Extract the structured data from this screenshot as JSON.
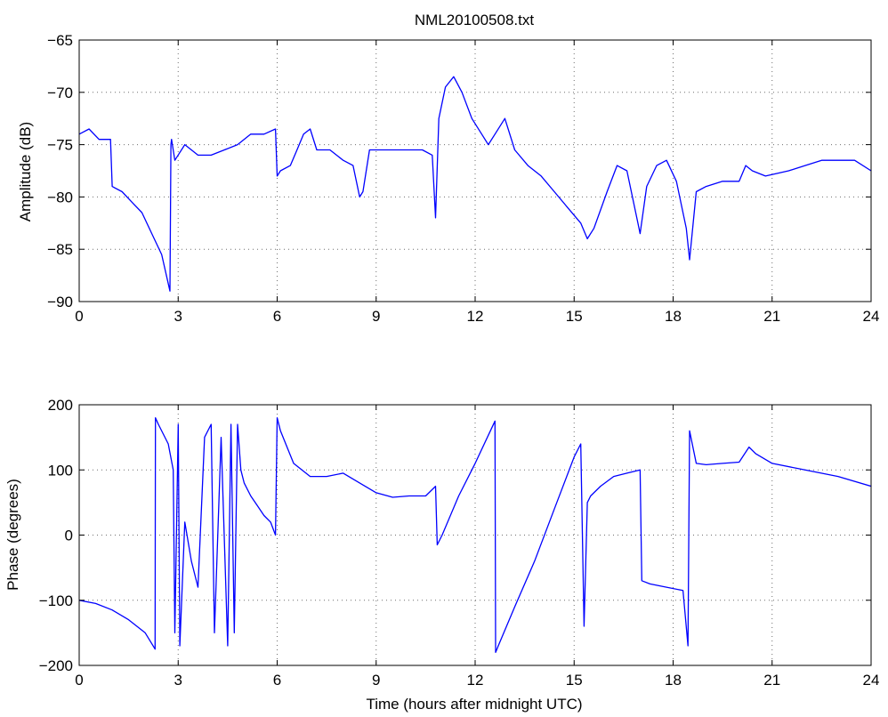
{
  "figure": {
    "background": "#ffffff",
    "line_color": "#0000ff",
    "axis_color": "#000000",
    "grid_color": "#6e6e6e"
  },
  "chart_data": [
    {
      "type": "line",
      "title": "NML20100508.txt",
      "xlabel": "",
      "ylabel": "Amplitude (dB)",
      "xlim": [
        0,
        24
      ],
      "ylim": [
        -90,
        -65
      ],
      "xticks": [
        0,
        3,
        6,
        9,
        12,
        15,
        18,
        21,
        24
      ],
      "yticks": [
        -90,
        -85,
        -80,
        -75,
        -70,
        -65
      ],
      "xtick_labels": [
        "0",
        "3",
        "6",
        "9",
        "12",
        "15",
        "18",
        "21",
        "24"
      ],
      "ytick_labels": [
        "−90",
        "−85",
        "−80",
        "−75",
        "−70",
        "−65"
      ],
      "grid": true,
      "series": [
        {
          "x": [
            0,
            0.3,
            0.6,
            0.95,
            1.0,
            1.3,
            1.6,
            1.9,
            2.2,
            2.5,
            2.75,
            2.78,
            2.8,
            2.9,
            3.2,
            3.6,
            4.0,
            4.4,
            4.8,
            5.2,
            5.6,
            5.95,
            6.0,
            6.1,
            6.4,
            6.6,
            6.8,
            7.0,
            7.2,
            7.6,
            8.0,
            8.3,
            8.5,
            8.6,
            8.8,
            9.2,
            9.6,
            10.0,
            10.4,
            10.7,
            10.8,
            10.9,
            11.1,
            11.35,
            11.6,
            11.9,
            12.2,
            12.4,
            12.6,
            12.9,
            13.2,
            13.6,
            14.0,
            14.4,
            14.8,
            15.2,
            15.4,
            15.6,
            16.0,
            16.3,
            16.6,
            16.9,
            17.0,
            17.2,
            17.5,
            17.8,
            18.1,
            18.4,
            18.5,
            18.7,
            19.0,
            19.5,
            20.0,
            20.2,
            20.4,
            20.8,
            21.5,
            22.0,
            22.5,
            23.0,
            23.5,
            24.0
          ],
          "values": [
            -74,
            -73.5,
            -74.5,
            -74.5,
            -79,
            -79.5,
            -80.5,
            -81.5,
            -83.5,
            -85.5,
            -89,
            -75,
            -74.5,
            -76.5,
            -75,
            -76,
            -76,
            -75.5,
            -75,
            -74,
            -74,
            -73.5,
            -78,
            -77.5,
            -77,
            -75.5,
            -74,
            -73.5,
            -75.5,
            -75.5,
            -76.5,
            -77,
            -80,
            -79.5,
            -75.5,
            -75.5,
            -75.5,
            -75.5,
            -75.5,
            -76,
            -82,
            -72.5,
            -69.5,
            -68.5,
            -70,
            -72.5,
            -74,
            -75,
            -74,
            -72.5,
            -75.5,
            -77,
            -78,
            -79.5,
            -81,
            -82.5,
            -84,
            -83,
            -79.5,
            -77,
            -77.5,
            -82,
            -83.5,
            -79,
            -77,
            -76.5,
            -78.5,
            -83,
            -86,
            -79.5,
            -79,
            -78.5,
            -78.5,
            -77,
            -77.5,
            -78,
            -77.5,
            -77,
            -76.5,
            -76.5,
            -76.5,
            -77.5
          ]
        }
      ]
    },
    {
      "type": "line",
      "title": "",
      "xlabel": "Time (hours after midnight UTC)",
      "ylabel": "Phase (degrees)",
      "xlim": [
        0,
        24
      ],
      "ylim": [
        -200,
        200
      ],
      "xticks": [
        0,
        3,
        6,
        9,
        12,
        15,
        18,
        21,
        24
      ],
      "yticks": [
        -200,
        -100,
        0,
        100,
        200
      ],
      "xtick_labels": [
        "0",
        "3",
        "6",
        "9",
        "12",
        "15",
        "18",
        "21",
        "24"
      ],
      "ytick_labels": [
        "−200",
        "−100",
        "0",
        "100",
        "200"
      ],
      "grid": true,
      "series": [
        {
          "x": [
            0,
            0.5,
            1.0,
            1.5,
            2.0,
            2.3,
            2.31,
            2.4,
            2.7,
            2.85,
            2.9,
            3.0,
            3.05,
            3.2,
            3.4,
            3.6,
            3.8,
            4.0,
            4.1,
            4.3,
            4.5,
            4.6,
            4.7,
            4.8,
            4.9,
            5.0,
            5.2,
            5.4,
            5.6,
            5.8,
            5.95,
            6.0,
            6.1,
            6.5,
            7.0,
            7.5,
            8.0,
            8.5,
            9.0,
            9.5,
            10.0,
            10.5,
            10.8,
            10.85,
            11.0,
            11.5,
            12.0,
            12.6,
            12.62,
            12.7,
            13.2,
            13.8,
            14.4,
            15.0,
            15.2,
            15.3,
            15.4,
            15.5,
            15.8,
            16.2,
            16.6,
            17.0,
            17.05,
            17.3,
            17.8,
            18.3,
            18.45,
            18.5,
            18.7,
            19.0,
            19.5,
            20.0,
            20.3,
            20.5,
            21.0,
            22.0,
            23.0,
            24.0
          ],
          "values": [
            -100,
            -105,
            -115,
            -130,
            -150,
            -175,
            180,
            170,
            140,
            100,
            -150,
            170,
            -170,
            20,
            -40,
            -80,
            150,
            170,
            -150,
            150,
            -170,
            170,
            -150,
            170,
            100,
            80,
            60,
            45,
            30,
            20,
            0,
            180,
            160,
            110,
            90,
            90,
            95,
            80,
            65,
            58,
            60,
            60,
            75,
            -15,
            0,
            60,
            110,
            175,
            -180,
            -170,
            -110,
            -40,
            40,
            120,
            140,
            -140,
            50,
            60,
            75,
            90,
            95,
            100,
            -70,
            -75,
            -80,
            -85,
            -170,
            160,
            110,
            108,
            110,
            112,
            135,
            125,
            110,
            100,
            90,
            75
          ]
        }
      ]
    }
  ]
}
